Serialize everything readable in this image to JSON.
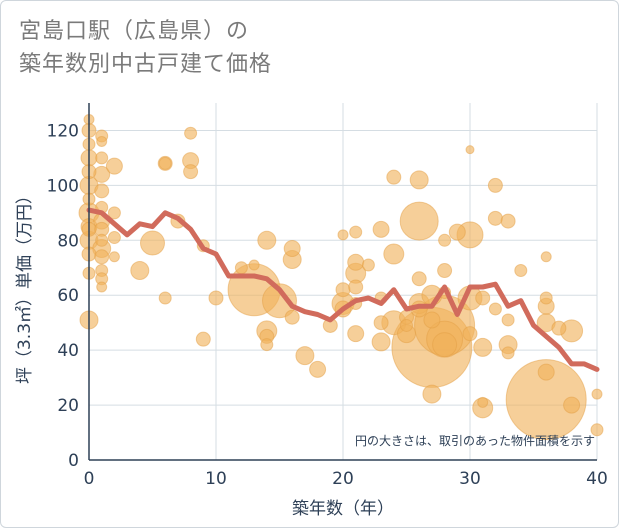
{
  "header": {
    "title_line1": "宮島口駅（広島県）の",
    "title_line2": "築年数別中古戸建て価格"
  },
  "chart_data": {
    "type": "scatter",
    "title": "宮島口駅（広島県）の築年数別中古戸建て価格",
    "xlabel": "築年数（年）",
    "ylabel": "坪（3.3㎡）単価（万円）",
    "xlim": [
      0,
      40
    ],
    "ylim": [
      0,
      130
    ],
    "x_ticks": [
      0,
      10,
      20,
      30,
      40
    ],
    "y_ticks": [
      0,
      20,
      40,
      60,
      80,
      100,
      120
    ],
    "grid": true,
    "note": "円の大きさは、取引のあった物件面積を示す",
    "colors": {
      "bubble": "#f0b25a",
      "bubble_stroke": "#e3a046",
      "line": "#d16b5c",
      "grid": "#d5dde3",
      "axis": "#2e4057"
    },
    "series": [
      {
        "name": "average",
        "kind": "line",
        "x": [
          0,
          1,
          2,
          3,
          4,
          5,
          6,
          7,
          8,
          9,
          10,
          11,
          12,
          13,
          14,
          15,
          16,
          17,
          18,
          19,
          20,
          21,
          22,
          23,
          24,
          25,
          26,
          27,
          28,
          29,
          30,
          31,
          32,
          33,
          34,
          35,
          36,
          37,
          38,
          39,
          40
        ],
        "y": [
          91,
          90,
          86,
          82,
          86,
          85,
          90,
          88,
          84,
          77,
          75,
          67,
          67,
          67,
          66,
          62,
          56,
          54,
          53,
          51,
          55,
          58,
          59,
          57,
          62,
          55,
          56,
          56,
          63,
          53,
          63,
          63,
          64,
          56,
          58,
          49,
          45,
          41,
          35,
          35,
          33
        ]
      },
      {
        "name": "transactions",
        "kind": "bubble",
        "points": [
          [
            0,
            124,
            5
          ],
          [
            0,
            120,
            7
          ],
          [
            0,
            115,
            6
          ],
          [
            0,
            110,
            8
          ],
          [
            0,
            105,
            7
          ],
          [
            0,
            100,
            9
          ],
          [
            0,
            95,
            6
          ],
          [
            0,
            90,
            10
          ],
          [
            0,
            85,
            8
          ],
          [
            0,
            80,
            9
          ],
          [
            0,
            75,
            7
          ],
          [
            0,
            68,
            6
          ],
          [
            0,
            51,
            9
          ],
          [
            0,
            84,
            7
          ],
          [
            1,
            118,
            6
          ],
          [
            1,
            116,
            5
          ],
          [
            1,
            110,
            6
          ],
          [
            1,
            104,
            8
          ],
          [
            1,
            98,
            7
          ],
          [
            1,
            92,
            6
          ],
          [
            1,
            87,
            8
          ],
          [
            1,
            84,
            7
          ],
          [
            1,
            80,
            6
          ],
          [
            1,
            77,
            9
          ],
          [
            1,
            74,
            7
          ],
          [
            1,
            69,
            6
          ],
          [
            1,
            66,
            6
          ],
          [
            1,
            63,
            5
          ],
          [
            2,
            107,
            8
          ],
          [
            2,
            90,
            6
          ],
          [
            2,
            81,
            6
          ],
          [
            2,
            74,
            5
          ],
          [
            4,
            69,
            9
          ],
          [
            5,
            79,
            12
          ],
          [
            6,
            108,
            7
          ],
          [
            6,
            108,
            6
          ],
          [
            6,
            59,
            6
          ],
          [
            7,
            87,
            7
          ],
          [
            8,
            119,
            6
          ],
          [
            8,
            109,
            8
          ],
          [
            8,
            105,
            7
          ],
          [
            9,
            78,
            6
          ],
          [
            9,
            44,
            7
          ],
          [
            10,
            59,
            7
          ],
          [
            12,
            70,
            6
          ],
          [
            13,
            62,
            26
          ],
          [
            13,
            71,
            5
          ],
          [
            14,
            80,
            9
          ],
          [
            14,
            45,
            7
          ],
          [
            14,
            42,
            6
          ],
          [
            14,
            47,
            10
          ],
          [
            15,
            58,
            17
          ],
          [
            16,
            77,
            8
          ],
          [
            16,
            73,
            9
          ],
          [
            16,
            52,
            7
          ],
          [
            17,
            38,
            9
          ],
          [
            18,
            33,
            8
          ],
          [
            19,
            49,
            7
          ],
          [
            20,
            82,
            5
          ],
          [
            20,
            62,
            7
          ],
          [
            20,
            57,
            11
          ],
          [
            20,
            55,
            8
          ],
          [
            21,
            83,
            6
          ],
          [
            21,
            72,
            8
          ],
          [
            21,
            68,
            10
          ],
          [
            21,
            63,
            7
          ],
          [
            21,
            46,
            8
          ],
          [
            21,
            57,
            6
          ],
          [
            22,
            71,
            6
          ],
          [
            23,
            84,
            8
          ],
          [
            23,
            59,
            6
          ],
          [
            23,
            50,
            7
          ],
          [
            23,
            43,
            9
          ],
          [
            24,
            103,
            7
          ],
          [
            24,
            75,
            10
          ],
          [
            24,
            50,
            12
          ],
          [
            25,
            49,
            6
          ],
          [
            25,
            46,
            9
          ],
          [
            25,
            52,
            7
          ],
          [
            26,
            102,
            9
          ],
          [
            26,
            87,
            19
          ],
          [
            26,
            66,
            7
          ],
          [
            26,
            57,
            10
          ],
          [
            26,
            55,
            8
          ],
          [
            27,
            41,
            40
          ],
          [
            27,
            51,
            8
          ],
          [
            27,
            24,
            9
          ],
          [
            27,
            60,
            10
          ],
          [
            28,
            69,
            7
          ],
          [
            28,
            61,
            6
          ],
          [
            28,
            80,
            6
          ],
          [
            28,
            49,
            30
          ],
          [
            28,
            44,
            18
          ],
          [
            28,
            42,
            12
          ],
          [
            29,
            83,
            8
          ],
          [
            30,
            113,
            4
          ],
          [
            30,
            82,
            13
          ],
          [
            30,
            59,
            12
          ],
          [
            30,
            46,
            7
          ],
          [
            31,
            59,
            7
          ],
          [
            31,
            19,
            10
          ],
          [
            31,
            21,
            5
          ],
          [
            31,
            41,
            9
          ],
          [
            32,
            100,
            7
          ],
          [
            32,
            88,
            7
          ],
          [
            32,
            55,
            6
          ],
          [
            33,
            87,
            7
          ],
          [
            33,
            51,
            6
          ],
          [
            33,
            42,
            9
          ],
          [
            33,
            39,
            6
          ],
          [
            34,
            69,
            6
          ],
          [
            36,
            74,
            5
          ],
          [
            36,
            59,
            6
          ],
          [
            36,
            56,
            8
          ],
          [
            36,
            50,
            9
          ],
          [
            36,
            22,
            40
          ],
          [
            36,
            32,
            8
          ],
          [
            37,
            48,
            7
          ],
          [
            38,
            20,
            8
          ],
          [
            38,
            47,
            11
          ],
          [
            40,
            24,
            5
          ],
          [
            40,
            11,
            6
          ]
        ]
      }
    ]
  }
}
